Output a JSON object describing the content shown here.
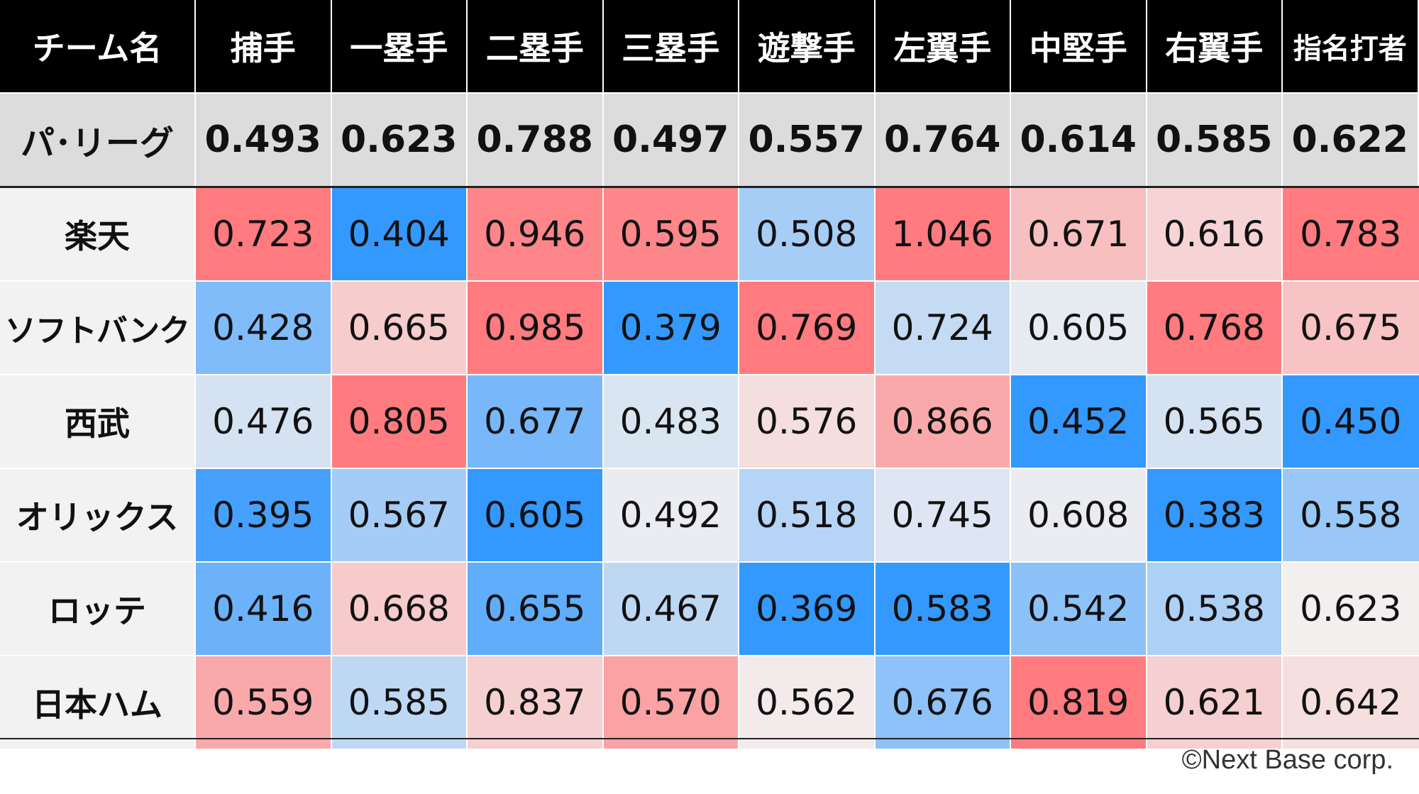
{
  "chart_data": {
    "type": "heatmap",
    "columns": [
      "チーム名",
      "捕手",
      "一塁手",
      "二塁手",
      "三塁手",
      "遊撃手",
      "左翼手",
      "中堅手",
      "右翼手",
      "指名打者"
    ],
    "league": {
      "label": "パ･リーグ",
      "values": [
        "0.493",
        "0.623",
        "0.788",
        "0.497",
        "0.557",
        "0.764",
        "0.614",
        "0.585",
        "0.622"
      ]
    },
    "teams": [
      {
        "name": "楽天",
        "values": [
          "0.723",
          "0.404",
          "0.946",
          "0.595",
          "0.508",
          "1.046",
          "0.671",
          "0.616",
          "0.783"
        ]
      },
      {
        "name": "ソフトバンク",
        "values": [
          "0.428",
          "0.665",
          "0.985",
          "0.379",
          "0.769",
          "0.724",
          "0.605",
          "0.768",
          "0.675"
        ]
      },
      {
        "name": "西武",
        "values": [
          "0.476",
          "0.805",
          "0.677",
          "0.483",
          "0.576",
          "0.866",
          "0.452",
          "0.565",
          "0.450"
        ]
      },
      {
        "name": "オリックス",
        "values": [
          "0.395",
          "0.567",
          "0.605",
          "0.492",
          "0.518",
          "0.745",
          "0.608",
          "0.383",
          "0.558"
        ]
      },
      {
        "name": "ロッテ",
        "values": [
          "0.416",
          "0.668",
          "0.655",
          "0.467",
          "0.369",
          "0.583",
          "0.542",
          "0.538",
          "0.623"
        ]
      },
      {
        "name": "日本ハム",
        "values": [
          "0.559",
          "0.585",
          "0.837",
          "0.570",
          "0.562",
          "0.676",
          "0.819",
          "0.621",
          "0.642"
        ]
      }
    ],
    "colors": {
      "header_bg": "#000000",
      "header_text": "#ffffff",
      "league_bg": "#dcdcdc",
      "label_bg": "#f2f2f2",
      "strong_positive": "#ff7b7f",
      "neutral": "#f3f0f0",
      "strong_negative": "#3399ff"
    }
  },
  "credit": "©Next Base corp."
}
